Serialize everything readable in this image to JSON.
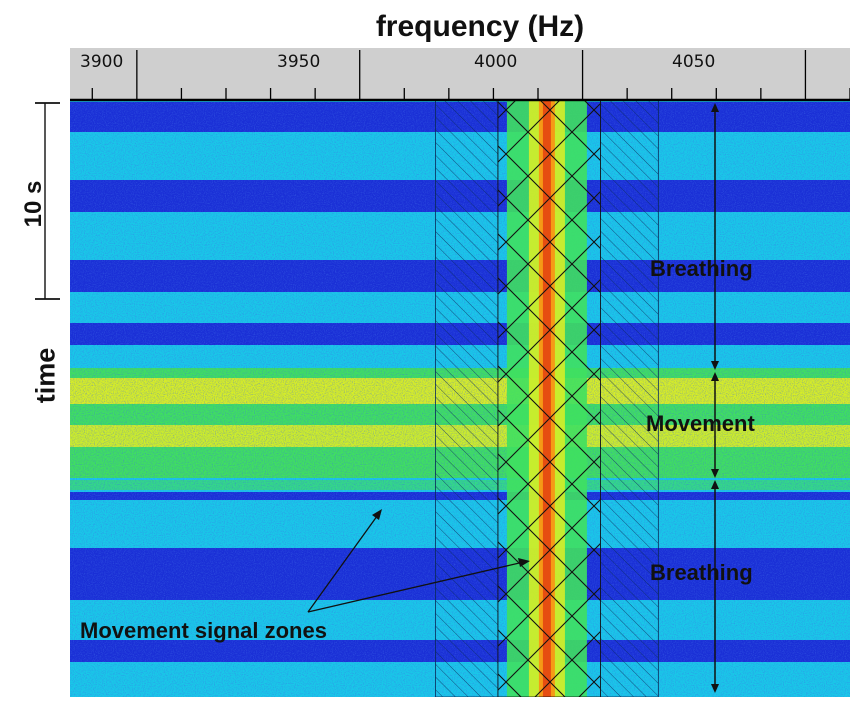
{
  "chart_data": {
    "type": "heatmap",
    "title": "frequency (Hz)",
    "xlabel": "frequency (Hz)",
    "ylabel": "time",
    "xlim": [
      3885,
      4060
    ],
    "x_ticks": [
      "3900",
      "3950",
      "4000",
      "4050"
    ],
    "time_scale_label": "10 s",
    "carrier_frequency": 3992,
    "movement_signal_zones": [
      [
        3967,
        3981
      ],
      [
        4004,
        4017
      ]
    ],
    "segments": [
      {
        "label": "Breathing",
        "type": "breathing"
      },
      {
        "label": "Movement",
        "type": "movement"
      },
      {
        "label": "Breathing",
        "type": "breathing"
      }
    ],
    "annotation": "Movement signal zones"
  },
  "colors": {
    "deep_blue": "#1a2fd6",
    "cyan": "#19c8e8",
    "green": "#3fe060",
    "yellow": "#e8f020",
    "orange": "#f59a16",
    "red": "#e23a10",
    "axis_bar": "#cfcfcf"
  }
}
